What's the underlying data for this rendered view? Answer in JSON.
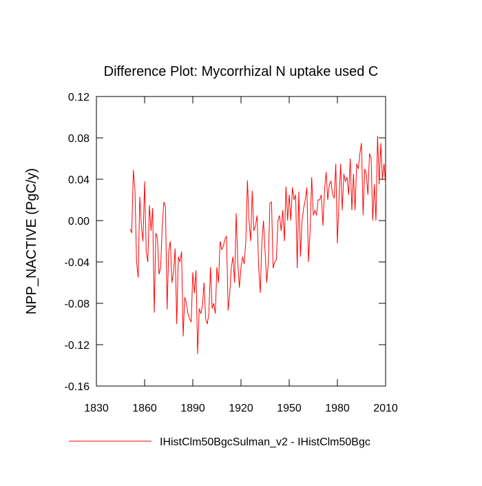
{
  "chart_data": {
    "type": "line",
    "title": "Difference Plot: Mycorrhizal N uptake used C",
    "y_label": "NPP_NACTIVE  (PgC/y)",
    "x": [
      1851,
      1852,
      1853,
      1854,
      1855,
      1856,
      1857,
      1858,
      1859,
      1860,
      1861,
      1862,
      1863,
      1864,
      1865,
      1866,
      1867,
      1868,
      1869,
      1870,
      1871,
      1872,
      1873,
      1874,
      1875,
      1876,
      1877,
      1878,
      1879,
      1880,
      1881,
      1882,
      1883,
      1884,
      1885,
      1886,
      1887,
      1888,
      1889,
      1890,
      1891,
      1892,
      1893,
      1894,
      1895,
      1896,
      1897,
      1898,
      1899,
      1900,
      1901,
      1902,
      1903,
      1904,
      1905,
      1906,
      1907,
      1908,
      1909,
      1910,
      1911,
      1912,
      1913,
      1914,
      1915,
      1916,
      1917,
      1918,
      1919,
      1920,
      1921,
      1922,
      1923,
      1924,
      1925,
      1926,
      1927,
      1928,
      1929,
      1930,
      1931,
      1932,
      1933,
      1934,
      1935,
      1936,
      1937,
      1938,
      1939,
      1940,
      1941,
      1942,
      1943,
      1944,
      1945,
      1946,
      1947,
      1948,
      1949,
      1950,
      1951,
      1952,
      1953,
      1954,
      1955,
      1956,
      1957,
      1958,
      1959,
      1960,
      1961,
      1962,
      1963,
      1964,
      1965,
      1966,
      1967,
      1968,
      1969,
      1970,
      1971,
      1972,
      1973,
      1974,
      1975,
      1976,
      1977,
      1978,
      1979,
      1980,
      1981,
      1982,
      1983,
      1984,
      1985,
      1986,
      1987,
      1988,
      1989,
      1990,
      1991,
      1992,
      1993,
      1994,
      1995,
      1996,
      1997,
      1998,
      1999,
      2000,
      2001,
      2002,
      2003,
      2004,
      2005,
      2006,
      2007,
      2008,
      2009,
      2010
    ],
    "series": [
      {
        "name": "IHistClm50BgcSulman_v2 - IHistClm50Bgc",
        "color": "#ff0000",
        "values": [
          -0.008,
          -0.012,
          0.049,
          0.03,
          -0.04,
          -0.055,
          0.023,
          -0.005,
          -0.02,
          0.038,
          -0.03,
          -0.04,
          0.015,
          -0.01,
          0.012,
          -0.089,
          -0.012,
          -0.018,
          -0.052,
          -0.045,
          -0.005,
          0.018,
          0.013,
          -0.086,
          -0.03,
          -0.02,
          -0.06,
          -0.05,
          -0.027,
          -0.1,
          -0.035,
          -0.04,
          -0.03,
          -0.112,
          -0.074,
          -0.08,
          -0.09,
          -0.095,
          -0.098,
          -0.05,
          -0.07,
          -0.048,
          -0.129,
          -0.085,
          -0.09,
          -0.082,
          -0.06,
          -0.095,
          -0.1,
          -0.09,
          -0.045,
          -0.085,
          -0.08,
          -0.09,
          -0.045,
          -0.06,
          -0.02,
          -0.028,
          -0.025,
          -0.018,
          -0.015,
          -0.087,
          -0.07,
          -0.045,
          -0.035,
          -0.06,
          0.007,
          -0.04,
          -0.065,
          -0.045,
          -0.035,
          -0.042,
          -0.02,
          0.039,
          0.0,
          -0.02,
          0.029,
          -0.01,
          -0.005,
          0.005,
          -0.045,
          -0.07,
          -0.02,
          0.0,
          -0.03,
          -0.06,
          -0.04,
          0.017,
          0.018,
          -0.046,
          -0.04,
          -0.038,
          0.0,
          0.005,
          -0.01,
          0.01,
          -0.02,
          0.033,
          0.0,
          0.025,
          0.0,
          0.032,
          0.02,
          0.025,
          -0.046,
          0.028,
          -0.035,
          0.0,
          0.012,
          0.02,
          0.032,
          -0.04,
          -0.01,
          0.042,
          0.005,
          0.01,
          0.005,
          0.02,
          0.02,
          0.025,
          -0.005,
          0.03,
          0.047,
          0.02,
          0.035,
          0.038,
          0.025,
          0.022,
          0.055,
          -0.022,
          0.02,
          0.055,
          0.01,
          0.045,
          0.038,
          0.042,
          0.025,
          0.06,
          0.01,
          0.045,
          0.01,
          0.055,
          0.05,
          0.065,
          0.075,
          0.005,
          0.05,
          0.045,
          0.025,
          0.065,
          0.06,
          0.0,
          0.035,
          0.0,
          0.082,
          0.035,
          0.075,
          0.04,
          0.055,
          0.035
        ]
      }
    ],
    "xlim": [
      1830,
      2010
    ],
    "xticks": [
      1830,
      1860,
      1890,
      1920,
      1950,
      1980,
      2010
    ],
    "ylim": [
      -0.16,
      0.12
    ],
    "yticks": [
      -0.16,
      -0.12,
      -0.08,
      -0.04,
      {
        "value": 0,
        "label": "0.00"
      },
      0.04,
      0.08,
      0.12
    ]
  }
}
